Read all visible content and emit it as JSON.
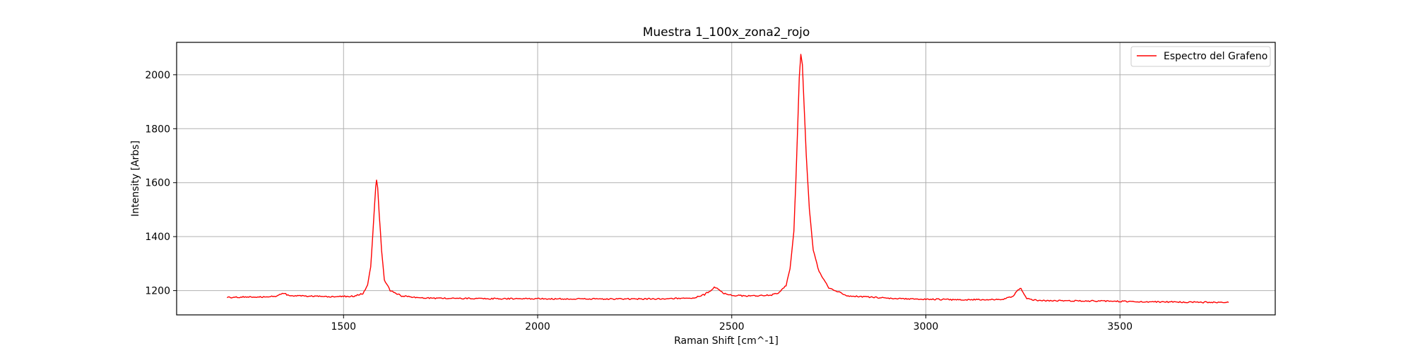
{
  "chart_data": {
    "type": "line",
    "title": "Muestra 1_100x_zona2_rojo",
    "xlabel": "Raman Shift [cm^-1]",
    "ylabel": "Intensity [Arbs]",
    "xlim": [
      1070,
      3900
    ],
    "ylim": [
      1110,
      2120
    ],
    "xticks": [
      1500,
      2000,
      2500,
      3000,
      3500
    ],
    "yticks": [
      1200,
      1400,
      1600,
      1800,
      2000
    ],
    "grid": true,
    "legend_position": "top-right",
    "series": [
      {
        "name": "Espectro del Grafeno",
        "color": "#ff0000",
        "x": [
          1200,
          1250,
          1300,
          1330,
          1345,
          1360,
          1400,
          1450,
          1500,
          1530,
          1550,
          1562,
          1570,
          1575,
          1580,
          1583,
          1585,
          1588,
          1592,
          1598,
          1605,
          1620,
          1650,
          1700,
          1800,
          1900,
          2000,
          2100,
          2200,
          2300,
          2400,
          2430,
          2445,
          2455,
          2465,
          2480,
          2500,
          2550,
          2600,
          2620,
          2640,
          2650,
          2660,
          2665,
          2670,
          2674,
          2678,
          2682,
          2686,
          2692,
          2700,
          2710,
          2725,
          2750,
          2800,
          2900,
          3000,
          3100,
          3200,
          3225,
          3240,
          3245,
          3250,
          3260,
          3280,
          3300,
          3400,
          3500,
          3600,
          3700,
          3780
        ],
        "y": [
          1175,
          1176,
          1177,
          1180,
          1190,
          1182,
          1180,
          1178,
          1178,
          1180,
          1190,
          1220,
          1290,
          1400,
          1520,
          1585,
          1608,
          1580,
          1480,
          1350,
          1240,
          1200,
          1180,
          1172,
          1171,
          1170,
          1170,
          1169,
          1169,
          1169,
          1173,
          1185,
          1200,
          1213,
          1205,
          1190,
          1182,
          1180,
          1183,
          1190,
          1220,
          1280,
          1420,
          1600,
          1820,
          1990,
          2075,
          2040,
          1900,
          1700,
          1500,
          1350,
          1270,
          1210,
          1180,
          1172,
          1168,
          1166,
          1168,
          1180,
          1205,
          1208,
          1195,
          1172,
          1165,
          1163,
          1162,
          1160,
          1158,
          1157,
          1156
        ]
      }
    ]
  }
}
